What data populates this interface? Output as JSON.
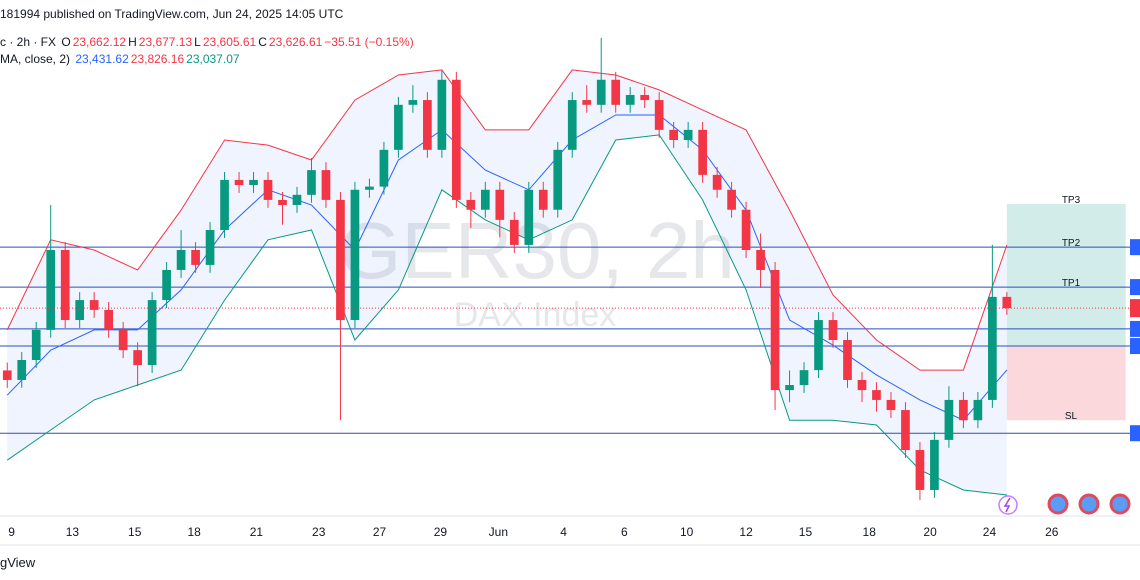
{
  "chart_data": {
    "type": "candlestick",
    "header": {
      "published": "181994 published on TradingView.com, Jun 24, 2025 14:05 UTC",
      "symbol": "c · 2h · FX",
      "ohlc": [
        {
          "key": "O",
          "text": "23,662.12"
        },
        {
          "key": "H",
          "text": "23,677.13"
        },
        {
          "key": "L",
          "text": "23,605.61"
        },
        {
          "key": "C",
          "text": "23,626.61"
        }
      ],
      "change": "−35.51 (−0.15%)",
      "indicator": "MA, close, 2)",
      "indicator_values": [
        "23,431.62",
        "23,826.16",
        "23,037.07"
      ]
    },
    "watermark": "GER30, 2h",
    "watermark_subtitle": "DAX Index",
    "footer": "gView",
    "up_color": "#089981",
    "down_color": "#f23645",
    "xlim": [
      -0.5,
      77.5
    ],
    "ylim": [
      22974,
      24504
    ],
    "xticks": [
      {
        "value": 0.3,
        "label": "9"
      },
      {
        "value": 4.5,
        "label": "13"
      },
      {
        "value": 8.8,
        "label": "15"
      },
      {
        "value": 12.9,
        "label": "18"
      },
      {
        "value": 17.2,
        "label": "21"
      },
      {
        "value": 21.5,
        "label": "23"
      },
      {
        "value": 25.7,
        "label": "27"
      },
      {
        "value": 29.9,
        "label": "29"
      },
      {
        "value": 33.9,
        "label": "Jun"
      },
      {
        "value": 38.4,
        "label": "4"
      },
      {
        "value": 42.6,
        "label": "6"
      },
      {
        "value": 46.9,
        "label": "10"
      },
      {
        "value": 51.0,
        "label": "12"
      },
      {
        "value": 55.1,
        "label": "15"
      },
      {
        "value": 59.5,
        "label": "18"
      },
      {
        "value": 63.7,
        "label": "20"
      },
      {
        "value": 67.8,
        "label": "24"
      },
      {
        "value": 72.1,
        "label": "26"
      }
    ],
    "candles": {
      "open": [
        23430,
        23400,
        23463,
        23558,
        23810,
        23589,
        23652,
        23621,
        23558,
        23494,
        23447,
        23652,
        23747,
        23810,
        23763,
        23873,
        24031,
        24015,
        24031,
        23968,
        23952,
        23984,
        24062,
        23968,
        23589,
        24000,
        24010,
        24126,
        24268,
        24283,
        24126,
        24347,
        23968,
        23937,
        24000,
        23905,
        23826,
        24000,
        23937,
        24126,
        24283,
        24268,
        24347,
        24268,
        24299,
        24283,
        24189,
        24157,
        24189,
        24047,
        24000,
        23937,
        23810,
        23747,
        23368,
        23384,
        23431,
        23589,
        23526,
        23400,
        23368,
        23337,
        23305,
        23179,
        23053,
        23211,
        23337,
        23273,
        23337,
        23662.12
      ],
      "high": [
        23455,
        23488,
        23583,
        23952,
        23835,
        23677,
        23677,
        23646,
        23583,
        23519,
        23677,
        23772,
        23873,
        23835,
        23898,
        24056,
        24056,
        24056,
        24056,
        23993,
        24009,
        24100,
        24087,
        23993,
        24025,
        24035,
        24151,
        24293,
        24330,
        24308,
        24378,
        24372,
        23993,
        24025,
        24025,
        23930,
        24025,
        24025,
        24151,
        24308,
        24330,
        24479,
        24372,
        24324,
        24324,
        24308,
        24214,
        24214,
        24214,
        24072,
        24025,
        23962,
        23862,
        23772,
        23430,
        23456,
        23614,
        23614,
        23551,
        23425,
        23393,
        23362,
        23330,
        23204,
        23236,
        23380,
        23362,
        23362,
        23826,
        23677.13
      ],
      "low": [
        23375,
        23375,
        23438,
        23533,
        23564,
        23564,
        23596,
        23533,
        23469,
        23380,
        23422,
        23627,
        23722,
        23738,
        23738,
        23848,
        23990,
        23990,
        23943,
        23890,
        23927,
        23959,
        23943,
        23273,
        23564,
        23975,
        23985,
        24101,
        24243,
        24101,
        24101,
        23943,
        23880,
        23912,
        23850,
        23801,
        23801,
        23912,
        23912,
        24101,
        24243,
        24243,
        24243,
        24243,
        24258,
        24164,
        24132,
        24132,
        24022,
        23975,
        23912,
        23785,
        23690,
        23305,
        23330,
        23359,
        23406,
        23501,
        23375,
        23330,
        23300,
        23280,
        23154,
        23021,
        23028,
        23186,
        23248,
        23248,
        23312,
        23605.61
      ],
      "close": [
        23400,
        23463,
        23558,
        23810,
        23589,
        23652,
        23621,
        23558,
        23494,
        23447,
        23652,
        23747,
        23810,
        23763,
        23873,
        24031,
        24015,
        24031,
        23968,
        23952,
        23984,
        24062,
        23968,
        23589,
        24000,
        24010,
        24126,
        24268,
        24283,
        24126,
        24347,
        23968,
        23937,
        24000,
        23905,
        23826,
        24000,
        23937,
        24126,
        24283,
        24268,
        24347,
        24268,
        24299,
        24283,
        24189,
        24157,
        24189,
        24047,
        24000,
        23937,
        23810,
        23747,
        23368,
        23384,
        23431,
        23589,
        23526,
        23400,
        23368,
        23337,
        23305,
        23179,
        23053,
        23211,
        23337,
        23273,
        23337,
        23662.12,
        23626.61
      ]
    },
    "bands": {
      "x": [
        0,
        3,
        6,
        9,
        12,
        15,
        18,
        21,
        24,
        27,
        30,
        33,
        36,
        39,
        42,
        45,
        48,
        51,
        54,
        57,
        60,
        63,
        66,
        69
      ],
      "series": [
        {
          "color": "#f23645",
          "values": [
            23558,
            23842,
            23810,
            23747,
            23936,
            24157,
            24141,
            24094,
            24283,
            24362,
            24378,
            24189,
            24189,
            24378,
            24362,
            24315,
            24252,
            24189,
            23936,
            23668,
            23526,
            23431,
            23431,
            23826.16
          ]
        },
        {
          "color": "#2962ff",
          "values": [
            23352,
            23494,
            23558,
            23558,
            23684,
            23873,
            24000,
            23952,
            23810,
            24094,
            24189,
            24062,
            24000,
            24157,
            24236,
            24236,
            24126,
            23936,
            23589,
            23510,
            23416,
            23337,
            23273,
            23431.62
          ]
        },
        {
          "color": "#089981",
          "values": [
            23147,
            23242,
            23337,
            23384,
            23431,
            23652,
            23842,
            23873,
            23526,
            23684,
            24000,
            23905,
            23842,
            23905,
            24157,
            24173,
            23968,
            23684,
            23273,
            23273,
            23258,
            23116,
            23053,
            23037.07
          ]
        }
      ],
      "fill": "#2962ff"
    },
    "levels": [
      23819,
      23693,
      23561,
      23507,
      23232
    ],
    "level_color": "#2a4fbf",
    "position": {
      "start": 69,
      "end": 77.2,
      "take_profit": 23955,
      "entry": 23507,
      "stop_loss": 23273,
      "profit_color": "#b2dfdb",
      "loss_color": "#f8c8cc"
    },
    "targets": [
      {
        "label": "TP3",
        "value": 23955
      },
      {
        "label": "TP2",
        "value": 23819
      },
      {
        "label": "TP1",
        "value": 23693
      },
      {
        "label": "SL",
        "value": 23273
      }
    ]
  }
}
